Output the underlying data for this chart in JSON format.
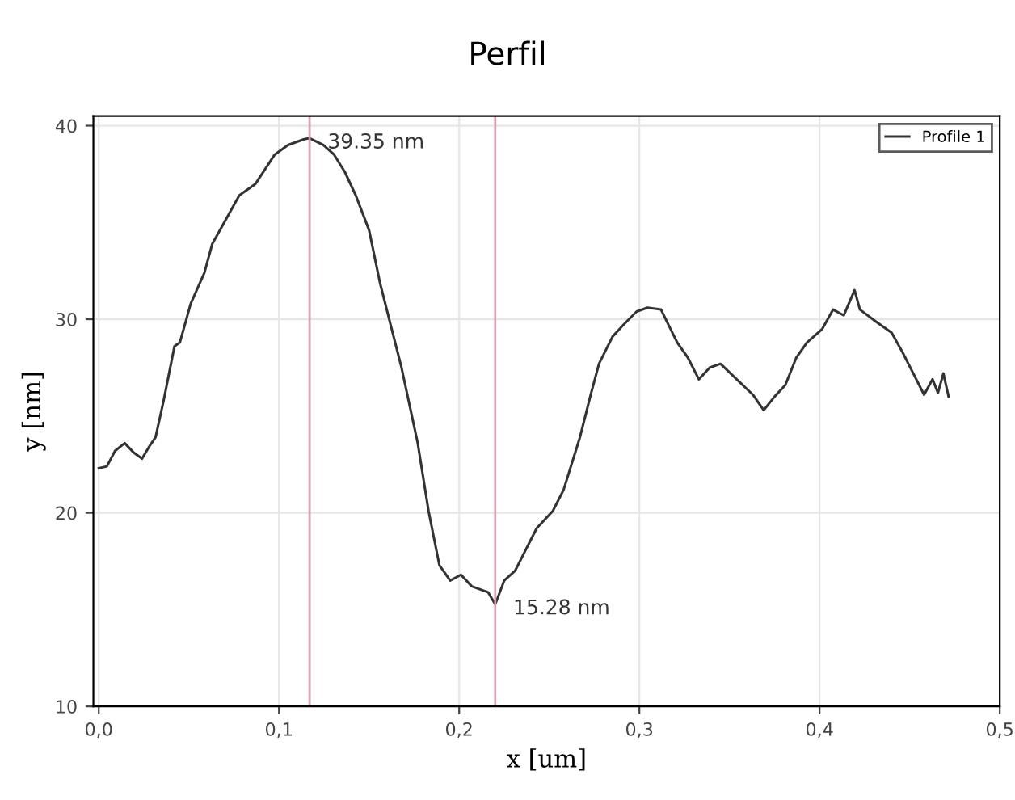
{
  "chart_data": {
    "type": "line",
    "title": "Perfil",
    "xlabel": "x [um]",
    "ylabel": "y [nm]",
    "xlim": [
      -0.003,
      0.5
    ],
    "ylim": [
      10,
      40.5
    ],
    "xticks": [
      {
        "value": 0,
        "label": "0,0"
      },
      {
        "value": 0.1,
        "label": "0,1"
      },
      {
        "value": 0.2,
        "label": "0,2"
      },
      {
        "value": 0.3,
        "label": "0,3"
      },
      {
        "value": 0.4,
        "label": "0,4"
      },
      {
        "value": 0.5,
        "label": "0,5"
      }
    ],
    "yticks": [
      10,
      20,
      30,
      40
    ],
    "grid": true,
    "legend": "top right",
    "ref_lines": [
      {
        "axis": "x",
        "value": 0.117,
        "label": null,
        "color": "#d9a0b0"
      },
      {
        "axis": "x",
        "value": 0.22,
        "label": null,
        "color": "#d9a0b0"
      }
    ],
    "annotations": [
      {
        "text": "39.35 nm",
        "x": 0.117,
        "y": 39.35
      },
      {
        "text": "15.28 nm",
        "x": 0.22,
        "y": 15.28
      }
    ],
    "series": [
      {
        "name": "Profile 1",
        "color": "#333333",
        "x": [
          0,
          0.0045,
          0.009,
          0.0144,
          0.0195,
          0.024,
          0.0285,
          0.0315,
          0.036,
          0.042,
          0.045,
          0.051,
          0.0586,
          0.063,
          0.069,
          0.078,
          0.087,
          0.0976,
          0.105,
          0.114,
          0.117,
          0.1246,
          0.1306,
          0.1366,
          0.1426,
          0.15,
          0.156,
          0.162,
          0.168,
          0.177,
          0.183,
          0.189,
          0.195,
          0.201,
          0.207,
          0.216,
          0.22,
          0.225,
          0.231,
          0.237,
          0.243,
          0.252,
          0.258,
          0.267,
          0.273,
          0.2776,
          0.2851,
          0.291,
          0.2985,
          0.3045,
          0.312,
          0.321,
          0.327,
          0.333,
          0.339,
          0.345,
          0.354,
          0.363,
          0.369,
          0.375,
          0.381,
          0.387,
          0.393,
          0.4015,
          0.4075,
          0.4134,
          0.4194,
          0.4224,
          0.431,
          0.44,
          0.446,
          0.452,
          0.458,
          0.4627,
          0.4657,
          0.4687,
          0.4716
        ],
        "values": [
          22.3,
          22.4,
          23.2,
          23.6,
          23.1,
          22.8,
          23.5,
          23.9,
          25.8,
          28.6,
          28.8,
          30.8,
          32.4,
          33.9,
          34.9,
          36.4,
          37.0,
          38.5,
          39.0,
          39.3,
          39.35,
          39.0,
          38.5,
          37.6,
          36.4,
          34.6,
          31.9,
          29.7,
          27.5,
          23.6,
          20.1,
          17.3,
          16.5,
          16.8,
          16.2,
          15.9,
          15.28,
          16.5,
          17.0,
          18.1,
          19.2,
          20.1,
          21.2,
          23.9,
          26.1,
          27.7,
          29.1,
          29.7,
          30.4,
          30.6,
          30.5,
          28.8,
          28.0,
          26.9,
          27.5,
          27.7,
          26.9,
          26.1,
          25.3,
          26.0,
          26.6,
          28.0,
          28.8,
          29.5,
          30.5,
          30.2,
          31.5,
          30.5,
          29.9,
          29.3,
          28.3,
          27.2,
          26.1,
          26.9,
          26.2,
          27.2,
          26.0
        ]
      }
    ]
  }
}
